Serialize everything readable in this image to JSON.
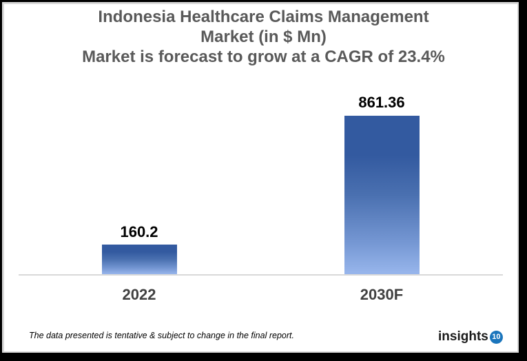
{
  "title": {
    "line1": "Indonesia Healthcare Claims Management",
    "line2": "Market (in $ Mn)",
    "line3": "Market is forecast to grow at a CAGR of 23.4%"
  },
  "footnote": "The data presented is tentative & subject to change in the final report.",
  "logo": {
    "text": "insights",
    "badge": "10",
    "badge_color": "#1b75bc"
  },
  "bars": [
    {
      "category": "2022",
      "value": 160.2,
      "label": "160.2"
    },
    {
      "category": "2030F",
      "value": 861.36,
      "label": "861.36"
    }
  ],
  "colors": {
    "bar_top": "#335aa0",
    "bar_bottom": "#98b6ec",
    "title": "#595959",
    "axis": "#d9d9d9"
  },
  "chart_data": {
    "type": "bar",
    "title": "Indonesia Healthcare Claims Management Market (in $ Mn)",
    "subtitle": "Market is forecast to grow at a CAGR of 23.4%",
    "categories": [
      "2022",
      "2030F"
    ],
    "values": [
      160.2,
      861.36
    ],
    "xlabel": "",
    "ylabel": "",
    "data_labels": true,
    "grid": false,
    "legend": null,
    "annotations": [
      "The data presented is tentative & subject to change in the final report."
    ]
  }
}
